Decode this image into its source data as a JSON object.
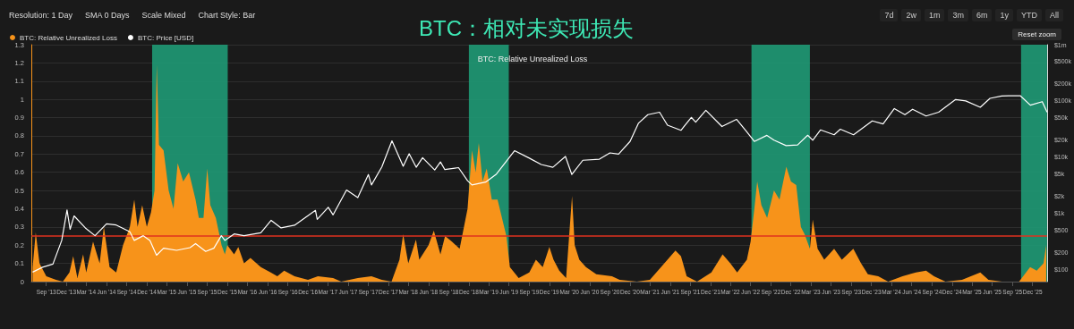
{
  "chart_data": {
    "type": "area",
    "title": "BTC：相对未实现损失",
    "subtitle": "BTC: Relative Unrealized Loss",
    "annotations": [
      "Resolution: 1 Day",
      "SMA 0 Days",
      "Scale Mixed",
      "Chart Style: Bar",
      "7d",
      "2w",
      "1m",
      "3m",
      "6m",
      "1y",
      "YTD",
      "All",
      "Reset zoom"
    ],
    "legend": "top left",
    "grid": "y",
    "marker": "none",
    "log": "y2",
    "xlim": [
      "2013-06-25",
      "2026-02-05"
    ],
    "xticks": [
      {
        "value": "2013-09-01",
        "label": "Sep '13"
      },
      {
        "value": "2013-12-01",
        "label": "Dec '13"
      },
      {
        "value": "2014-03-01",
        "label": "Mar '14"
      },
      {
        "value": "2014-06-01",
        "label": "Jun '14"
      },
      {
        "value": "2014-09-01",
        "label": "Sep '14"
      },
      {
        "value": "2014-12-01",
        "label": "Dec '14"
      },
      {
        "value": "2015-03-01",
        "label": "Mar '15"
      },
      {
        "value": "2015-06-01",
        "label": "Jun '15"
      },
      {
        "value": "2015-09-01",
        "label": "Sep '15"
      },
      {
        "value": "2015-12-01",
        "label": "Dec '15"
      },
      {
        "value": "2016-03-01",
        "label": "Mar '16"
      },
      {
        "value": "2016-06-01",
        "label": "Jun '16"
      },
      {
        "value": "2016-09-01",
        "label": "Sep '16"
      },
      {
        "value": "2016-12-01",
        "label": "Dec '16"
      },
      {
        "value": "2017-03-01",
        "label": "Mar '17"
      },
      {
        "value": "2017-06-01",
        "label": "Jun '17"
      },
      {
        "value": "2017-09-01",
        "label": "Sep '17"
      },
      {
        "value": "2017-12-01",
        "label": "Dec '17"
      },
      {
        "value": "2018-03-01",
        "label": "Mar '18"
      },
      {
        "value": "2018-06-01",
        "label": "Jun '18"
      },
      {
        "value": "2018-09-01",
        "label": "Sep '18"
      },
      {
        "value": "2018-12-01",
        "label": "Dec '18"
      },
      {
        "value": "2019-03-01",
        "label": "Mar '19"
      },
      {
        "value": "2019-06-01",
        "label": "Jun '19"
      },
      {
        "value": "2019-09-01",
        "label": "Sep '19"
      },
      {
        "value": "2019-12-01",
        "label": "Dec '19"
      },
      {
        "value": "2020-03-01",
        "label": "Mar '20"
      },
      {
        "value": "2020-06-01",
        "label": "Jun '20"
      },
      {
        "value": "2020-09-01",
        "label": "Sep '20"
      },
      {
        "value": "2020-12-01",
        "label": "Dec '20"
      },
      {
        "value": "2021-03-01",
        "label": "Mar '21"
      },
      {
        "value": "2021-06-01",
        "label": "Jun '21"
      },
      {
        "value": "2021-09-01",
        "label": "Sep '21"
      },
      {
        "value": "2021-12-01",
        "label": "Dec '21"
      },
      {
        "value": "2022-03-01",
        "label": "Mar '22"
      },
      {
        "value": "2022-06-01",
        "label": "Jun '22"
      },
      {
        "value": "2022-09-01",
        "label": "Sep '22"
      },
      {
        "value": "2022-12-01",
        "label": "Dec '22"
      },
      {
        "value": "2023-03-01",
        "label": "Mar '23"
      },
      {
        "value": "2023-06-01",
        "label": "Jun '23"
      },
      {
        "value": "2023-09-01",
        "label": "Sep '23"
      },
      {
        "value": "2023-12-01",
        "label": "Dec '23"
      },
      {
        "value": "2024-03-01",
        "label": "Mar '24"
      },
      {
        "value": "2024-06-01",
        "label": "Jun '24"
      },
      {
        "value": "2024-09-01",
        "label": "Sep '24"
      },
      {
        "value": "2024-12-01",
        "label": "Dec '24"
      },
      {
        "value": "2025-03-01",
        "label": "Mar '25"
      },
      {
        "value": "2025-06-01",
        "label": "Jun '25"
      },
      {
        "value": "2025-09-01",
        "label": "Sep '25"
      },
      {
        "value": "2025-12-01",
        "label": "Dec '25"
      }
    ],
    "ylim": [
      0,
      1.3
    ],
    "yticks": [
      0,
      0.1,
      0.2,
      0.3,
      0.4,
      0.5,
      0.6,
      0.7,
      0.8,
      0.9,
      1,
      1.1,
      1.2,
      1.3
    ],
    "y2lim": [
      61,
      1000000
    ],
    "y2ticks": [
      {
        "value": 100,
        "label": "$100"
      },
      {
        "value": 200,
        "label": "$200"
      },
      {
        "value": 500,
        "label": "$500"
      },
      {
        "value": 1000,
        "label": "$1k"
      },
      {
        "value": 2000,
        "label": "$2k"
      },
      {
        "value": 5000,
        "label": "$5k"
      },
      {
        "value": 10000,
        "label": "$10k"
      },
      {
        "value": 20000,
        "label": "$20k"
      },
      {
        "value": 50000,
        "label": "$50k"
      },
      {
        "value": 100000,
        "label": "$100k"
      },
      {
        "value": 200000,
        "label": "$200k"
      },
      {
        "value": 500000,
        "label": "$500k"
      },
      {
        "value": 1000000,
        "label": "$1m"
      }
    ],
    "ref_lines": [
      {
        "axis": "y",
        "value": 0.25,
        "color": "#e0321f"
      }
    ],
    "bands": [
      {
        "axis": "x",
        "from": "2014-12-25",
        "to": "2015-12-03",
        "color": "#1f9a76"
      },
      {
        "axis": "x",
        "from": "2018-12-01",
        "to": "2019-05-31",
        "color": "#1f9a76"
      },
      {
        "axis": "x",
        "from": "2022-06-05",
        "to": "2023-02-25",
        "color": "#1f9a76"
      },
      {
        "axis": "x",
        "from": "2025-10-10",
        "to": "2026-02-05",
        "color": "#1f9a76"
      }
    ],
    "series": [
      {
        "name": "BTC: Relative Unrealized Loss",
        "color": "#f7931a",
        "x": [
          "2013-07-01",
          "2013-07-15",
          "2013-08-01",
          "2013-09-01",
          "2013-10-15",
          "2013-11-15",
          "2013-12-15",
          "2014-01-01",
          "2014-01-20",
          "2014-02-15",
          "2014-03-01",
          "2014-04-01",
          "2014-05-01",
          "2014-05-20",
          "2014-06-15",
          "2014-07-15",
          "2014-08-15",
          "2014-09-15",
          "2014-10-05",
          "2014-10-20",
          "2014-11-10",
          "2014-12-01",
          "2014-12-20",
          "2015-01-05",
          "2015-01-15",
          "2015-01-25",
          "2015-02-15",
          "2015-03-10",
          "2015-04-01",
          "2015-04-20",
          "2015-05-15",
          "2015-06-10",
          "2015-07-10",
          "2015-07-25",
          "2015-08-15",
          "2015-09-01",
          "2015-09-15",
          "2015-10-10",
          "2015-11-05",
          "2015-11-20",
          "2015-12-01",
          "2016-01-01",
          "2016-01-20",
          "2016-02-15",
          "2016-03-15",
          "2016-05-01",
          "2016-06-15",
          "2016-07-15",
          "2016-08-15",
          "2016-10-01",
          "2016-12-01",
          "2017-01-15",
          "2017-03-25",
          "2017-05-01",
          "2017-07-15",
          "2017-09-15",
          "2017-11-01",
          "2017-12-15",
          "2018-01-20",
          "2018-02-06",
          "2018-03-01",
          "2018-04-05",
          "2018-04-20",
          "2018-06-01",
          "2018-06-25",
          "2018-07-25",
          "2018-08-15",
          "2018-09-15",
          "2018-10-20",
          "2018-11-25",
          "2018-12-15",
          "2019-01-01",
          "2019-01-15",
          "2019-02-01",
          "2019-02-20",
          "2019-03-15",
          "2019-04-10",
          "2019-05-20",
          "2019-06-05",
          "2019-07-15",
          "2019-09-01",
          "2019-10-01",
          "2019-11-01",
          "2019-12-01",
          "2019-12-20",
          "2020-01-15",
          "2020-02-15",
          "2020-03-13",
          "2020-03-25",
          "2020-04-15",
          "2020-05-15",
          "2020-07-01",
          "2020-09-10",
          "2020-10-15",
          "2021-01-01",
          "2021-03-01",
          "2021-05-20",
          "2021-06-25",
          "2021-07-20",
          "2021-08-15",
          "2021-10-01",
          "2021-12-05",
          "2022-01-25",
          "2022-03-01",
          "2022-04-01",
          "2022-05-15",
          "2022-06-01",
          "2022-06-18",
          "2022-07-01",
          "2022-07-20",
          "2022-08-15",
          "2022-09-15",
          "2022-10-10",
          "2022-11-10",
          "2022-12-01",
          "2022-12-25",
          "2023-01-15",
          "2023-02-01",
          "2023-02-25",
          "2023-03-10",
          "2023-04-01",
          "2023-05-01",
          "2023-06-15",
          "2023-07-20",
          "2023-09-10",
          "2023-10-15",
          "2023-11-15",
          "2024-01-01",
          "2024-02-15",
          "2024-04-20",
          "2024-06-20",
          "2024-08-05",
          "2024-09-10",
          "2024-11-01",
          "2025-01-15",
          "2025-04-08",
          "2025-05-15",
          "2025-07-15",
          "2025-10-01",
          "2025-11-20",
          "2025-12-20",
          "2026-01-20",
          "2026-02-01"
        ],
        "values": [
          0.08,
          0.27,
          0.1,
          0.03,
          0.01,
          0,
          0.05,
          0.14,
          0.02,
          0.15,
          0.05,
          0.22,
          0.1,
          0.3,
          0.08,
          0.05,
          0.2,
          0.3,
          0.45,
          0.3,
          0.42,
          0.3,
          0.38,
          0.5,
          1.19,
          0.75,
          0.72,
          0.5,
          0.4,
          0.65,
          0.55,
          0.6,
          0.45,
          0.35,
          0.35,
          0.62,
          0.42,
          0.35,
          0.2,
          0.15,
          0.2,
          0.15,
          0.19,
          0.1,
          0.13,
          0.08,
          0.05,
          0.03,
          0.06,
          0.03,
          0.01,
          0.03,
          0.02,
          0,
          0.02,
          0.03,
          0.01,
          0,
          0.12,
          0.26,
          0.1,
          0.23,
          0.12,
          0.2,
          0.28,
          0.15,
          0.25,
          0.22,
          0.18,
          0.4,
          0.72,
          0.6,
          0.76,
          0.55,
          0.62,
          0.45,
          0.45,
          0.25,
          0.08,
          0.02,
          0.05,
          0.12,
          0.08,
          0.19,
          0.12,
          0.06,
          0.02,
          0.47,
          0.2,
          0.12,
          0.08,
          0.04,
          0.03,
          0.01,
          0,
          0.01,
          0.12,
          0.17,
          0.14,
          0.03,
          0,
          0.05,
          0.15,
          0.1,
          0.05,
          0.12,
          0.22,
          0.4,
          0.55,
          0.42,
          0.35,
          0.5,
          0.45,
          0.63,
          0.55,
          0.53,
          0.3,
          0.26,
          0.18,
          0.34,
          0.18,
          0.12,
          0.18,
          0.12,
          0.18,
          0.1,
          0.04,
          0.03,
          0,
          0.03,
          0.05,
          0.06,
          0.03,
          0,
          0.01,
          0.05,
          0.01,
          0,
          0,
          0.08,
          0.06,
          0.1,
          0.2
        ]
      },
      {
        "name": "BTC: Price [USD]",
        "type": "line",
        "axis": "y2",
        "color": "#ffffff",
        "x": [
          "2013-07-01",
          "2013-08-15",
          "2013-10-01",
          "2013-11-10",
          "2013-12-04",
          "2013-12-18",
          "2014-01-05",
          "2014-02-25",
          "2014-04-10",
          "2014-06-01",
          "2014-07-15",
          "2014-09-15",
          "2014-10-05",
          "2014-11-15",
          "2014-12-15",
          "2015-01-14",
          "2015-02-15",
          "2015-04-15",
          "2015-06-15",
          "2015-07-10",
          "2015-08-25",
          "2015-10-01",
          "2015-11-04",
          "2015-11-20",
          "2016-01-01",
          "2016-02-15",
          "2016-05-01",
          "2016-06-17",
          "2016-08-01",
          "2016-10-01",
          "2017-01-04",
          "2017-01-12",
          "2017-03-03",
          "2017-03-25",
          "2017-05-25",
          "2017-07-15",
          "2017-09-01",
          "2017-09-15",
          "2017-11-01",
          "2017-12-17",
          "2018-02-06",
          "2018-03-05",
          "2018-04-06",
          "2018-05-05",
          "2018-06-29",
          "2018-07-25",
          "2018-08-14",
          "2018-10-15",
          "2018-11-25",
          "2018-12-15",
          "2019-02-15",
          "2019-04-05",
          "2019-06-26",
          "2019-09-01",
          "2019-10-25",
          "2019-12-17",
          "2020-02-12",
          "2020-03-12",
          "2020-05-01",
          "2020-07-15",
          "2020-09-01",
          "2020-10-10",
          "2020-12-01",
          "2021-01-08",
          "2021-02-20",
          "2021-04-14",
          "2021-05-20",
          "2021-07-20",
          "2021-09-05",
          "2021-09-25",
          "2021-11-10",
          "2022-01-22",
          "2022-03-29",
          "2022-05-12",
          "2022-06-18",
          "2022-08-14",
          "2022-09-15",
          "2022-11-09",
          "2022-12-31",
          "2023-02-15",
          "2023-03-10",
          "2023-04-14",
          "2023-06-15",
          "2023-07-13",
          "2023-09-11",
          "2023-12-05",
          "2024-01-23",
          "2024-03-14",
          "2024-05-01",
          "2024-06-05",
          "2024-08-05",
          "2024-10-01",
          "2024-12-17",
          "2025-02-01",
          "2025-04-08",
          "2025-05-22",
          "2025-07-14",
          "2025-08-14",
          "2025-10-06",
          "2025-11-21",
          "2026-01-14",
          "2026-02-05"
        ],
        "values": [
          90,
          110,
          125,
          330,
          1150,
          520,
          900,
          550,
          400,
          650,
          620,
          470,
          330,
          400,
          330,
          180,
          240,
          220,
          245,
          290,
          210,
          240,
          400,
          330,
          430,
          400,
          450,
          750,
          550,
          615,
          1130,
          780,
          1280,
          940,
          2600,
          1900,
          4900,
          3200,
          6700,
          19500,
          6900,
          11500,
          6600,
          9800,
          5900,
          8200,
          6000,
          6500,
          3800,
          3200,
          3600,
          5000,
          13000,
          9600,
          7400,
          6600,
          10300,
          4900,
          8800,
          9200,
          11900,
          11300,
          19000,
          40000,
          57000,
          63000,
          37000,
          30000,
          51000,
          42000,
          68000,
          35000,
          47000,
          29000,
          19000,
          24400,
          20000,
          16000,
          16500,
          24500,
          20000,
          30500,
          25000,
          31400,
          25000,
          44000,
          39000,
          73000,
          57000,
          71000,
          54000,
          63000,
          106000,
          100000,
          77000,
          111000,
          122000,
          123000,
          124000,
          84000,
          97000,
          63000
        ]
      }
    ]
  }
}
